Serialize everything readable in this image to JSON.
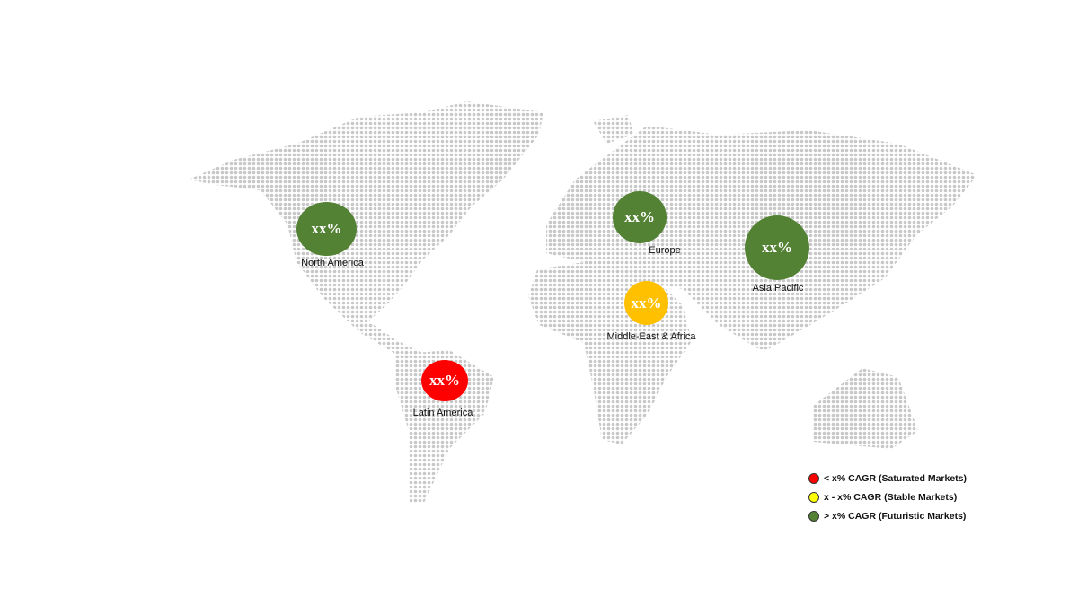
{
  "regions": [
    {
      "name": "North America",
      "value": "xx%",
      "color": "#548235"
    },
    {
      "name": "Europe",
      "value": "xx%",
      "color": "#548235"
    },
    {
      "name": "Asia Pacific",
      "value": "xx%",
      "color": "#548235"
    },
    {
      "name": "Middle-East & Africa",
      "value": "xx%",
      "color": "#ffc000"
    },
    {
      "name": "Latin America",
      "value": "xx%",
      "color": "#ff0000"
    }
  ],
  "legend": [
    {
      "label": "< x% CAGR (Saturated Markets)",
      "color": "#ff0000"
    },
    {
      "label": "x - x% CAGR (Stable Markets)",
      "color": "#ffff00"
    },
    {
      "label": "> x% CAGR (Futuristic Markets)",
      "color": "#548235"
    }
  ],
  "map_dot_color": "#c8c8c8"
}
